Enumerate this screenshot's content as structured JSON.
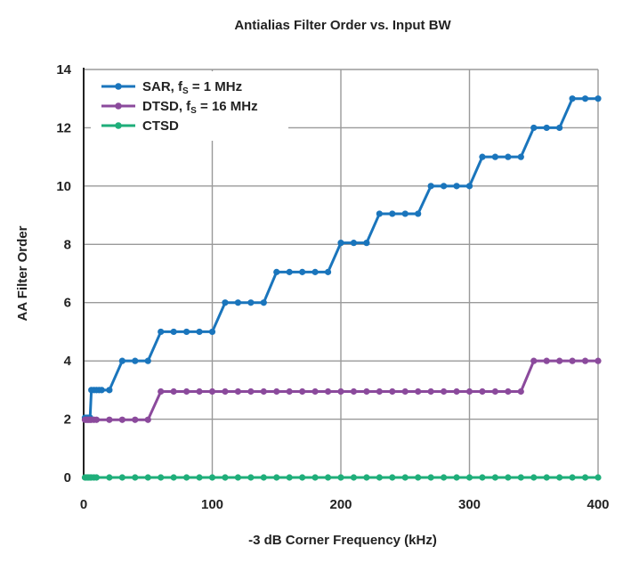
{
  "chart_data": {
    "type": "line",
    "title": "Antialias Filter Order vs. Input BW",
    "xlabel": "-3 dB Corner Frequency (kHz)",
    "ylabel": "AA Filter Order",
    "xlim": [
      0,
      400
    ],
    "ylim": [
      0,
      14
    ],
    "xticks": [
      0,
      100,
      200,
      300,
      400
    ],
    "yticks": [
      0,
      2,
      4,
      6,
      8,
      10,
      12,
      14
    ],
    "grid": true,
    "legend_position": "top-left",
    "series": [
      {
        "name_main": "SAR, f",
        "name_sub": "S",
        "name_tail": " = 1 MHz",
        "color": "#1a75bc",
        "points": [
          [
            1,
            2.05
          ],
          [
            2,
            2.05
          ],
          [
            3,
            2.05
          ],
          [
            4,
            2.05
          ],
          [
            5,
            2.05
          ],
          [
            6,
            3
          ],
          [
            8,
            3
          ],
          [
            10,
            3
          ],
          [
            12,
            3
          ],
          [
            14,
            3
          ],
          [
            20,
            3
          ],
          [
            30,
            4
          ],
          [
            40,
            4
          ],
          [
            50,
            4
          ],
          [
            60,
            5
          ],
          [
            70,
            5
          ],
          [
            80,
            5
          ],
          [
            90,
            5
          ],
          [
            100,
            5
          ],
          [
            110,
            6
          ],
          [
            120,
            6
          ],
          [
            130,
            6
          ],
          [
            140,
            6
          ],
          [
            150,
            7.05
          ],
          [
            160,
            7.05
          ],
          [
            170,
            7.05
          ],
          [
            180,
            7.05
          ],
          [
            190,
            7.05
          ],
          [
            200,
            8.05
          ],
          [
            210,
            8.05
          ],
          [
            220,
            8.05
          ],
          [
            230,
            9.05
          ],
          [
            240,
            9.05
          ],
          [
            250,
            9.05
          ],
          [
            260,
            9.05
          ],
          [
            270,
            10
          ],
          [
            280,
            10
          ],
          [
            290,
            10
          ],
          [
            300,
            10
          ],
          [
            310,
            11
          ],
          [
            320,
            11
          ],
          [
            330,
            11
          ],
          [
            340,
            11
          ],
          [
            350,
            12
          ],
          [
            360,
            12
          ],
          [
            370,
            12
          ],
          [
            380,
            13
          ],
          [
            390,
            13
          ],
          [
            400,
            13
          ]
        ]
      },
      {
        "name_main": "DTSD, f",
        "name_sub": "S",
        "name_tail": " = 16 MHz",
        "color": "#8b4a9c",
        "points": [
          [
            1,
            1.98
          ],
          [
            2,
            1.98
          ],
          [
            3,
            1.98
          ],
          [
            4,
            1.98
          ],
          [
            5,
            1.98
          ],
          [
            6,
            1.98
          ],
          [
            8,
            1.98
          ],
          [
            10,
            1.98
          ],
          [
            20,
            1.98
          ],
          [
            30,
            1.98
          ],
          [
            40,
            1.98
          ],
          [
            50,
            1.98
          ],
          [
            60,
            2.95
          ],
          [
            70,
            2.95
          ],
          [
            80,
            2.95
          ],
          [
            90,
            2.95
          ],
          [
            100,
            2.95
          ],
          [
            110,
            2.95
          ],
          [
            120,
            2.95
          ],
          [
            130,
            2.95
          ],
          [
            140,
            2.95
          ],
          [
            150,
            2.95
          ],
          [
            160,
            2.95
          ],
          [
            170,
            2.95
          ],
          [
            180,
            2.95
          ],
          [
            190,
            2.95
          ],
          [
            200,
            2.95
          ],
          [
            210,
            2.95
          ],
          [
            220,
            2.95
          ],
          [
            230,
            2.95
          ],
          [
            240,
            2.95
          ],
          [
            250,
            2.95
          ],
          [
            260,
            2.95
          ],
          [
            270,
            2.95
          ],
          [
            280,
            2.95
          ],
          [
            290,
            2.95
          ],
          [
            300,
            2.95
          ],
          [
            310,
            2.95
          ],
          [
            320,
            2.95
          ],
          [
            330,
            2.95
          ],
          [
            340,
            2.95
          ],
          [
            350,
            4
          ],
          [
            360,
            4
          ],
          [
            370,
            4
          ],
          [
            380,
            4
          ],
          [
            390,
            4
          ],
          [
            400,
            4
          ]
        ]
      },
      {
        "name_main": "CTSD",
        "name_sub": "",
        "name_tail": "",
        "color": "#1fae7a",
        "points": [
          [
            1,
            0
          ],
          [
            2,
            0
          ],
          [
            3,
            0
          ],
          [
            4,
            0
          ],
          [
            5,
            0
          ],
          [
            6,
            0
          ],
          [
            8,
            0
          ],
          [
            10,
            0
          ],
          [
            20,
            0
          ],
          [
            30,
            0
          ],
          [
            40,
            0
          ],
          [
            50,
            0
          ],
          [
            60,
            0
          ],
          [
            70,
            0
          ],
          [
            80,
            0
          ],
          [
            90,
            0
          ],
          [
            100,
            0
          ],
          [
            110,
            0
          ],
          [
            120,
            0
          ],
          [
            130,
            0
          ],
          [
            140,
            0
          ],
          [
            150,
            0
          ],
          [
            160,
            0
          ],
          [
            170,
            0
          ],
          [
            180,
            0
          ],
          [
            190,
            0
          ],
          [
            200,
            0
          ],
          [
            210,
            0
          ],
          [
            220,
            0
          ],
          [
            230,
            0
          ],
          [
            240,
            0
          ],
          [
            250,
            0
          ],
          [
            260,
            0
          ],
          [
            270,
            0
          ],
          [
            280,
            0
          ],
          [
            290,
            0
          ],
          [
            300,
            0
          ],
          [
            310,
            0
          ],
          [
            320,
            0
          ],
          [
            330,
            0
          ],
          [
            340,
            0
          ],
          [
            350,
            0
          ],
          [
            360,
            0
          ],
          [
            370,
            0
          ],
          [
            380,
            0
          ],
          [
            390,
            0
          ],
          [
            400,
            0
          ]
        ]
      }
    ]
  }
}
